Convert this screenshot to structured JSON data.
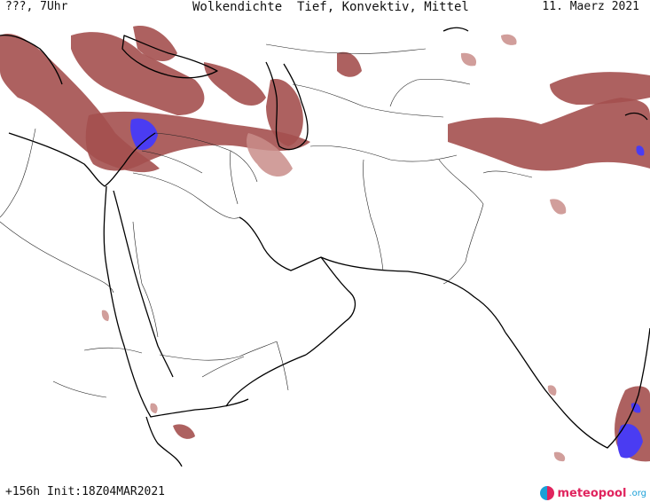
{
  "header": {
    "left": "???, 7Uhr",
    "title": "Wolkendichte  Tief, Konvektiv, Mittel",
    "date": "11. Maerz 2021"
  },
  "footer": {
    "run_info": "+156h Init:18Z04MAR2021"
  },
  "logo": {
    "name": "meteopool",
    "tld": ".org"
  },
  "colors": {
    "cloud_dense": "#a4504f",
    "cloud_light": "#c98d8a",
    "convective": "#4a3cf2"
  }
}
